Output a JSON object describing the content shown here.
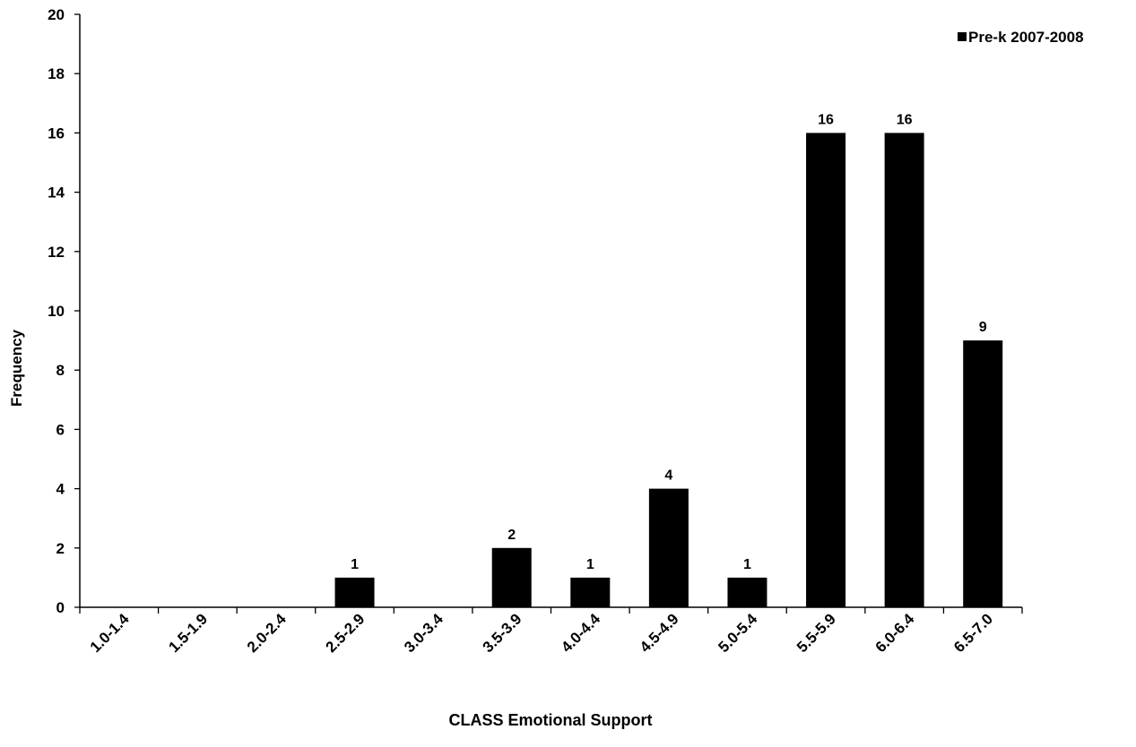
{
  "chart_data": {
    "type": "bar",
    "title": "",
    "xlabel": "CLASS Emotional Support",
    "ylabel": "Frequency",
    "ylim": [
      0,
      20
    ],
    "yticks": [
      0,
      2,
      4,
      6,
      8,
      10,
      12,
      14,
      16,
      18,
      20
    ],
    "categories": [
      "1.0-1.4",
      "1.5-1.9",
      "2.0-2.4",
      "2.5-2.9",
      "3.0-3.4",
      "3.5-3.9",
      "4.0-4.4",
      "4.5-4.9",
      "5.0-5.4",
      "5.5-5.9",
      "6.0-6.4",
      "6.5-7.0"
    ],
    "series": [
      {
        "name": "Pre-k 2007-2008",
        "color": "#000000",
        "values": [
          0,
          0,
          0,
          1,
          0,
          2,
          1,
          4,
          1,
          16,
          16,
          9
        ],
        "labels": [
          "",
          "",
          "",
          "1",
          "",
          "2",
          "1",
          "4",
          "1",
          "16",
          "16",
          "9"
        ]
      }
    ],
    "grid": false,
    "legend_position": "top-right"
  }
}
